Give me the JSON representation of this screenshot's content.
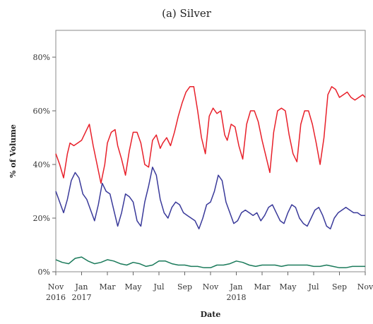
{
  "chart_data": {
    "type": "line",
    "title": "(a) Silver",
    "xlabel": "Date",
    "ylabel": "% of Volume",
    "ylim": [
      0,
      90
    ],
    "y_ticks": [
      0,
      20,
      40,
      60,
      80
    ],
    "y_tick_labels": [
      "0%",
      "20%",
      "40%",
      "60%",
      "80%"
    ],
    "x_ticks": [
      {
        "x": 0,
        "label": "Nov",
        "label2": "2016"
      },
      {
        "x": 2,
        "label": "Jan",
        "label2": "2017"
      },
      {
        "x": 4,
        "label": "Mar"
      },
      {
        "x": 6,
        "label": "May"
      },
      {
        "x": 8,
        "label": "Jul"
      },
      {
        "x": 10,
        "label": "Sep"
      },
      {
        "x": 12,
        "label": "Nov"
      },
      {
        "x": 14,
        "label": "Jan",
        "label2": "2018"
      },
      {
        "x": 16,
        "label": "Mar"
      },
      {
        "x": 18,
        "label": "May"
      },
      {
        "x": 20,
        "label": "Jul"
      },
      {
        "x": 22,
        "label": "Sep"
      },
      {
        "x": 24,
        "label": "Nov"
      }
    ],
    "xlim": [
      0,
      24
    ],
    "grid": false,
    "series": [
      {
        "color": "#e8202a",
        "x": [
          0,
          0.3,
          0.6,
          0.9,
          1.1,
          1.4,
          1.7,
          2.0,
          2.4,
          2.6,
          2.9,
          3.2,
          3.5,
          3.8,
          4.0,
          4.3,
          4.6,
          4.8,
          5.1,
          5.4,
          5.7,
          6.0,
          6.3,
          6.6,
          6.9,
          7.2,
          7.5,
          7.8,
          8.1,
          8.3,
          8.6,
          8.9,
          9.2,
          9.5,
          9.8,
          10.1,
          10.4,
          10.7,
          11.0,
          11.3,
          11.6,
          11.9,
          12.2,
          12.5,
          12.8,
          13.1,
          13.3,
          13.6,
          13.9,
          14.2,
          14.5,
          14.8,
          15.1,
          15.4,
          15.7,
          16.0,
          16.3,
          16.6,
          16.9,
          17.2,
          17.5,
          17.8,
          18.1,
          18.4,
          18.7,
          19.0,
          19.3,
          19.6,
          19.9,
          20.2,
          20.5,
          20.8,
          21.1,
          21.4,
          21.7,
          22.0,
          22.3,
          22.6,
          22.9,
          23.2,
          23.5,
          23.8,
          24.0
        ],
        "values": [
          44,
          40,
          35,
          44,
          48,
          47,
          48,
          49,
          53,
          55,
          47,
          40,
          33,
          40,
          48,
          52,
          53,
          47,
          42,
          36,
          45,
          52,
          52,
          48,
          40,
          39,
          49,
          51,
          46,
          48,
          50,
          47,
          52,
          58,
          63,
          67,
          69,
          69,
          60,
          50,
          44,
          58,
          61,
          59,
          60,
          51,
          49,
          55,
          54,
          47,
          42,
          55,
          60,
          60,
          56,
          49,
          43,
          37,
          52,
          60,
          61,
          60,
          51,
          44,
          41,
          55,
          60,
          60,
          55,
          48,
          40,
          50,
          66,
          69,
          68,
          65,
          66,
          67,
          65,
          64,
          65,
          66,
          65
        ]
      },
      {
        "color": "#3a3a9a",
        "x": [
          0,
          0.3,
          0.6,
          0.9,
          1.2,
          1.5,
          1.8,
          2.1,
          2.4,
          2.7,
          3.0,
          3.3,
          3.6,
          3.9,
          4.2,
          4.5,
          4.8,
          5.1,
          5.4,
          5.7,
          6.0,
          6.3,
          6.6,
          6.9,
          7.2,
          7.5,
          7.8,
          8.1,
          8.4,
          8.7,
          9.0,
          9.3,
          9.6,
          9.9,
          10.2,
          10.5,
          10.8,
          11.1,
          11.4,
          11.7,
          12.0,
          12.3,
          12.6,
          12.9,
          13.2,
          13.5,
          13.8,
          14.1,
          14.4,
          14.7,
          15.0,
          15.3,
          15.6,
          15.9,
          16.2,
          16.5,
          16.8,
          17.1,
          17.4,
          17.7,
          18.0,
          18.3,
          18.6,
          18.9,
          19.2,
          19.5,
          19.8,
          20.1,
          20.4,
          20.7,
          21.0,
          21.3,
          21.6,
          21.9,
          22.2,
          22.5,
          22.8,
          23.1,
          23.4,
          23.7,
          24.0
        ],
        "values": [
          30,
          26,
          22,
          27,
          34,
          37,
          35,
          29,
          27,
          23,
          19,
          25,
          33,
          30,
          29,
          23,
          17,
          22,
          29,
          28,
          26,
          19,
          17,
          26,
          32,
          39,
          36,
          27,
          22,
          20,
          24,
          26,
          25,
          22,
          21,
          20,
          19,
          16,
          20,
          25,
          26,
          30,
          36,
          34,
          26,
          22,
          18,
          19,
          22,
          23,
          22,
          21,
          22,
          19,
          21,
          24,
          25,
          22,
          19,
          18,
          22,
          25,
          24,
          20,
          18,
          17,
          20,
          23,
          24,
          21,
          17,
          16,
          20,
          22,
          23,
          24,
          23,
          22,
          22,
          21,
          21
        ]
      },
      {
        "color": "#1a7a5a",
        "x": [
          0,
          0.5,
          1.0,
          1.5,
          2.0,
          2.5,
          3.0,
          3.5,
          4.0,
          4.5,
          5.0,
          5.5,
          6.0,
          6.5,
          7.0,
          7.5,
          8.0,
          8.5,
          9.0,
          9.5,
          10.0,
          10.5,
          11.0,
          11.5,
          12.0,
          12.5,
          13.0,
          13.5,
          14.0,
          14.5,
          15.0,
          15.5,
          16.0,
          16.5,
          17.0,
          17.5,
          18.0,
          18.5,
          19.0,
          19.5,
          20.0,
          20.5,
          21.0,
          21.5,
          22.0,
          22.5,
          23.0,
          23.5,
          24.0
        ],
        "values": [
          4.5,
          3.5,
          3.0,
          5.0,
          5.5,
          4.0,
          3.0,
          3.5,
          4.5,
          4.0,
          3.0,
          2.5,
          3.5,
          3.0,
          2.0,
          2.5,
          4.0,
          4.0,
          3.0,
          2.5,
          2.5,
          2.0,
          2.0,
          1.5,
          1.5,
          2.5,
          2.5,
          3.0,
          4.0,
          3.5,
          2.5,
          2.0,
          2.5,
          2.5,
          2.5,
          2.0,
          2.5,
          2.5,
          2.5,
          2.5,
          2.0,
          2.0,
          2.5,
          2.0,
          1.5,
          1.5,
          2.0,
          2.0,
          2.0
        ]
      }
    ]
  }
}
